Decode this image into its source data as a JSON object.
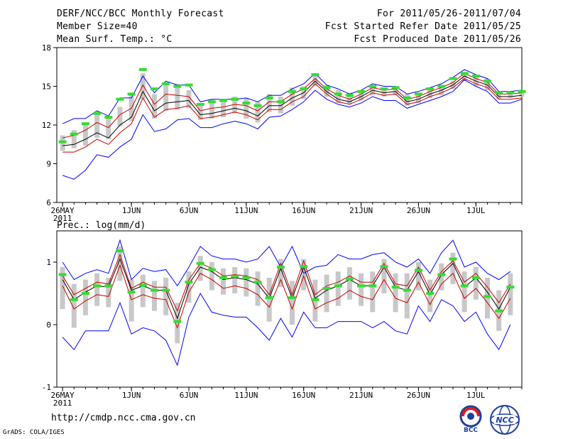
{
  "header": {
    "title": "DERF/NCC/BCC Monthly Forecast",
    "member_size": "Member Size=40",
    "variable": "Mean Surf. Temp.: °C",
    "period": "For 2011/05/26-2011/07/04",
    "start_date": "Fcst Started Refer Date 2011/05/25",
    "produced_date": "Fcst Produced Date 2011/05/26"
  },
  "footer": {
    "url": "http://cmdp.ncc.cma.gov.cn",
    "credit": "GrADS: COLA/IGES",
    "logo_bcc": "BCC",
    "logo_ncc": "NCC"
  },
  "colors": {
    "envelope": "#0000ff",
    "spread": "#cc0000",
    "mean": "#000000",
    "box": "#c8c8c8",
    "marker": "#33dd33"
  },
  "chart_data": [
    {
      "type": "line",
      "title": "Mean Surf. Temp.: °C",
      "ylim": [
        6,
        18
      ],
      "yticks": [
        6,
        9,
        12,
        15,
        18
      ],
      "xlim": [
        -0.5,
        40
      ],
      "xticks": [
        {
          "pos": 0,
          "label": "26MAY",
          "sub": "2011"
        },
        {
          "pos": 6,
          "label": "1JUN"
        },
        {
          "pos": 11,
          "label": "6JUN"
        },
        {
          "pos": 16,
          "label": "11JUN"
        },
        {
          "pos": 21,
          "label": "16JUN"
        },
        {
          "pos": 26,
          "label": "21JUN"
        },
        {
          "pos": 31,
          "label": "26JUN"
        },
        {
          "pos": 36,
          "label": "1JUL"
        }
      ],
      "series": [
        {
          "name": "max",
          "color": "#0000ff",
          "values": [
            12.1,
            12.5,
            12.5,
            13.1,
            12.7,
            14.1,
            14.1,
            15.8,
            14.5,
            15.4,
            15.1,
            15.1,
            13.8,
            14.0,
            14.0,
            14.0,
            14.1,
            13.8,
            14.3,
            14.3,
            14.8,
            15.2,
            16.0,
            15.1,
            14.8,
            14.4,
            14.7,
            15.2,
            15.0,
            15.0,
            14.4,
            14.6,
            14.9,
            15.2,
            15.7,
            16.3,
            15.9,
            15.6,
            14.6,
            14.6,
            14.7
          ]
        },
        {
          "name": "upper",
          "color": "#cc0000",
          "values": [
            11.0,
            11.2,
            11.6,
            12.2,
            11.8,
            12.8,
            13.3,
            15.1,
            13.6,
            14.4,
            14.3,
            14.2,
            13.1,
            13.3,
            13.4,
            13.6,
            13.5,
            13.1,
            13.8,
            13.8,
            14.4,
            14.8,
            15.6,
            14.8,
            14.3,
            14.0,
            14.4,
            14.9,
            14.7,
            14.8,
            14.0,
            14.2,
            14.6,
            14.9,
            15.3,
            16.0,
            15.6,
            15.3,
            14.4,
            14.4,
            14.5
          ]
        },
        {
          "name": "mean",
          "color": "#000000",
          "values": [
            10.4,
            10.5,
            10.9,
            11.4,
            11.0,
            12.0,
            12.6,
            14.6,
            13.1,
            13.7,
            13.8,
            13.9,
            12.8,
            12.9,
            13.1,
            13.3,
            13.1,
            12.7,
            13.5,
            13.5,
            14.1,
            14.5,
            15.4,
            14.6,
            14.0,
            13.8,
            14.2,
            14.7,
            14.5,
            14.6,
            13.8,
            14.0,
            14.4,
            14.7,
            15.1,
            15.8,
            15.4,
            15.1,
            14.2,
            14.2,
            14.3
          ]
        },
        {
          "name": "lower",
          "color": "#cc0000",
          "values": [
            9.9,
            9.9,
            10.3,
            10.9,
            10.5,
            11.4,
            12.1,
            14.1,
            12.6,
            13.2,
            13.3,
            13.5,
            12.5,
            12.6,
            12.8,
            13.0,
            12.8,
            12.4,
            13.2,
            13.2,
            13.8,
            14.2,
            15.2,
            14.4,
            13.8,
            13.6,
            14.0,
            14.5,
            14.3,
            14.4,
            13.6,
            13.8,
            14.2,
            14.5,
            14.9,
            15.6,
            15.2,
            14.9,
            14.0,
            14.0,
            14.1
          ]
        },
        {
          "name": "min",
          "color": "#0000ff",
          "values": [
            8.1,
            7.8,
            8.5,
            9.7,
            9.5,
            10.3,
            10.9,
            12.8,
            11.5,
            11.7,
            12.4,
            12.5,
            11.8,
            11.8,
            12.1,
            12.3,
            12.1,
            11.7,
            12.6,
            12.7,
            13.2,
            13.8,
            14.7,
            14.0,
            13.6,
            13.4,
            13.7,
            14.2,
            13.9,
            13.9,
            13.3,
            13.6,
            13.9,
            14.2,
            14.6,
            15.5,
            15.0,
            14.6,
            13.7,
            13.7,
            14.0
          ]
        },
        {
          "name": "observed",
          "color": "#33dd33",
          "values": [
            10.7,
            11.3,
            12.1,
            12.9,
            12.6,
            14.0,
            14.4,
            16.3,
            14.8,
            15.2,
            15.0,
            15.1,
            13.6,
            13.8,
            13.9,
            14.0,
            13.7,
            13.5,
            14.1,
            13.8,
            14.6,
            14.8,
            15.9,
            14.9,
            14.4,
            14.3,
            14.6,
            15.0,
            14.8,
            14.9,
            14.1,
            14.4,
            14.8,
            15.0,
            15.6,
            16.0,
            15.8,
            15.4,
            14.5,
            14.5,
            14.6
          ]
        },
        {
          "name": "box_high",
          "color": "#c8c8c8",
          "values": [
            11.2,
            11.6,
            12.1,
            12.9,
            12.5,
            13.4,
            14.3,
            16.0,
            14.4,
            15.1,
            15.2,
            14.7,
            13.6,
            14.0,
            14.0,
            14.2,
            14.1,
            13.8,
            14.4,
            14.2,
            14.9,
            15.0,
            16.0,
            15.1,
            14.7,
            14.5,
            14.7,
            15.1,
            14.9,
            14.9,
            14.4,
            14.5,
            14.9,
            15.0,
            15.4,
            16.0,
            15.8,
            15.6,
            14.6,
            14.5,
            14.6
          ]
        },
        {
          "name": "box_low",
          "color": "#c8c8c8",
          "values": [
            10.0,
            10.2,
            10.4,
            11.0,
            10.9,
            11.9,
            12.3,
            14.0,
            12.5,
            13.1,
            13.2,
            13.3,
            12.4,
            12.5,
            12.6,
            12.9,
            12.5,
            12.2,
            13.0,
            12.9,
            13.5,
            14.0,
            15.0,
            14.2,
            13.7,
            13.6,
            13.9,
            14.3,
            14.2,
            14.3,
            13.5,
            13.7,
            14.1,
            14.3,
            14.8,
            15.4,
            15.0,
            14.7,
            14.0,
            14.1,
            14.2
          ]
        }
      ]
    },
    {
      "type": "line",
      "title": "Prec.: log(mm/d)",
      "ylim": [
        -1,
        1.5
      ],
      "yticks": [
        -1,
        0,
        1
      ],
      "xlim": [
        -0.5,
        40
      ],
      "xticks": [
        {
          "pos": 0,
          "label": "26MAY",
          "sub": "2011"
        },
        {
          "pos": 6,
          "label": "1JUN"
        },
        {
          "pos": 11,
          "label": "6JUN"
        },
        {
          "pos": 16,
          "label": "11JUN"
        },
        {
          "pos": 21,
          "label": "16JUN"
        },
        {
          "pos": 26,
          "label": "21JUN"
        },
        {
          "pos": 31,
          "label": "26JUN"
        },
        {
          "pos": 36,
          "label": "1JUL"
        }
      ],
      "series": [
        {
          "name": "max",
          "color": "#0000ff",
          "values": [
            1.0,
            0.72,
            0.82,
            0.88,
            0.82,
            1.35,
            0.72,
            0.9,
            0.85,
            0.88,
            0.62,
            0.92,
            1.25,
            1.1,
            1.05,
            1.05,
            1.0,
            1.05,
            1.25,
            0.92,
            1.25,
            0.82,
            0.92,
            0.95,
            1.12,
            1.05,
            1.05,
            1.12,
            1.15,
            1.0,
            0.92,
            1.05,
            0.82,
            1.15,
            1.35,
            0.92,
            1.0,
            0.82,
            0.72,
            0.85
          ]
        },
        {
          "name": "upper",
          "color": "#cc0000",
          "values": [
            0.78,
            0.48,
            0.58,
            0.68,
            0.65,
            1.12,
            0.58,
            0.68,
            0.6,
            0.6,
            0.22,
            0.72,
            0.98,
            0.9,
            0.78,
            0.8,
            0.78,
            0.72,
            0.48,
            0.98,
            0.48,
            1.02,
            0.48,
            0.62,
            0.68,
            0.78,
            0.68,
            0.68,
            0.98,
            0.65,
            0.62,
            0.92,
            0.55,
            0.85,
            1.02,
            0.68,
            0.82,
            0.6,
            0.35,
            0.65
          ]
        },
        {
          "name": "mean",
          "color": "#000000",
          "values": [
            0.72,
            0.4,
            0.52,
            0.62,
            0.6,
            1.05,
            0.55,
            0.62,
            0.55,
            0.55,
            0.1,
            0.65,
            0.92,
            0.85,
            0.72,
            0.75,
            0.72,
            0.65,
            0.42,
            0.9,
            0.42,
            0.92,
            0.42,
            0.55,
            0.62,
            0.72,
            0.62,
            0.62,
            0.92,
            0.6,
            0.55,
            0.85,
            0.48,
            0.8,
            0.98,
            0.6,
            0.75,
            0.52,
            0.25,
            0.6
          ]
        },
        {
          "name": "lower",
          "color": "#cc0000",
          "values": [
            0.62,
            0.25,
            0.38,
            0.48,
            0.45,
            0.95,
            0.4,
            0.48,
            0.42,
            0.4,
            -0.05,
            0.52,
            0.82,
            0.72,
            0.58,
            0.62,
            0.58,
            0.48,
            0.28,
            0.72,
            0.25,
            0.78,
            0.25,
            0.35,
            0.42,
            0.55,
            0.45,
            0.4,
            0.72,
            0.42,
            0.35,
            0.68,
            0.32,
            0.65,
            0.82,
            0.42,
            0.58,
            0.35,
            0.1,
            0.42
          ]
        },
        {
          "name": "min",
          "color": "#0000ff",
          "values": [
            -0.2,
            -0.4,
            -0.1,
            -0.1,
            -0.1,
            0.35,
            -0.15,
            -0.05,
            -0.1,
            -0.25,
            -0.65,
            0.12,
            0.5,
            0.2,
            0.15,
            0.12,
            0.12,
            -0.05,
            -0.25,
            0.1,
            -0.2,
            0.2,
            -0.05,
            -0.05,
            0.05,
            0.05,
            0.05,
            -0.05,
            0.05,
            -0.1,
            -0.15,
            0.3,
            0.05,
            0.4,
            0.3,
            0.05,
            0.2,
            -0.15,
            -0.4,
            0.0
          ]
        },
        {
          "name": "observed",
          "color": "#33dd33",
          "values": [
            0.8,
            0.4,
            0.5,
            0.62,
            0.62,
            1.18,
            0.52,
            0.63,
            0.55,
            0.55,
            0.05,
            0.68,
            0.98,
            0.88,
            0.75,
            0.77,
            0.75,
            0.68,
            0.43,
            0.92,
            0.43,
            0.93,
            0.4,
            0.58,
            0.62,
            0.73,
            0.62,
            0.62,
            0.93,
            0.6,
            0.55,
            0.87,
            0.5,
            0.8,
            1.05,
            0.62,
            0.75,
            0.45,
            0.22,
            0.6
          ]
        },
        {
          "name": "box_high",
          "color": "#c8c8c8",
          "values": [
            0.92,
            0.65,
            0.72,
            0.82,
            0.75,
            1.25,
            0.72,
            0.8,
            0.7,
            0.75,
            0.35,
            0.85,
            1.1,
            1.0,
            0.9,
            0.92,
            0.9,
            0.85,
            0.75,
            1.05,
            0.7,
            1.05,
            0.72,
            0.8,
            0.85,
            0.92,
            0.82,
            0.85,
            1.05,
            0.82,
            0.82,
            1.0,
            0.72,
            0.98,
            1.15,
            0.85,
            0.92,
            0.75,
            0.55,
            0.82
          ]
        },
        {
          "name": "box_low",
          "color": "#c8c8c8",
          "values": [
            0.25,
            -0.05,
            0.15,
            0.3,
            0.28,
            0.7,
            0.05,
            0.28,
            0.22,
            0.15,
            -0.3,
            0.35,
            0.7,
            0.55,
            0.48,
            0.5,
            0.45,
            0.3,
            0.05,
            0.6,
            0.0,
            0.55,
            0.05,
            0.2,
            0.3,
            0.4,
            0.3,
            0.2,
            0.5,
            0.2,
            0.1,
            0.55,
            0.2,
            0.55,
            0.65,
            0.2,
            0.4,
            0.1,
            -0.1,
            0.15
          ]
        }
      ]
    }
  ]
}
